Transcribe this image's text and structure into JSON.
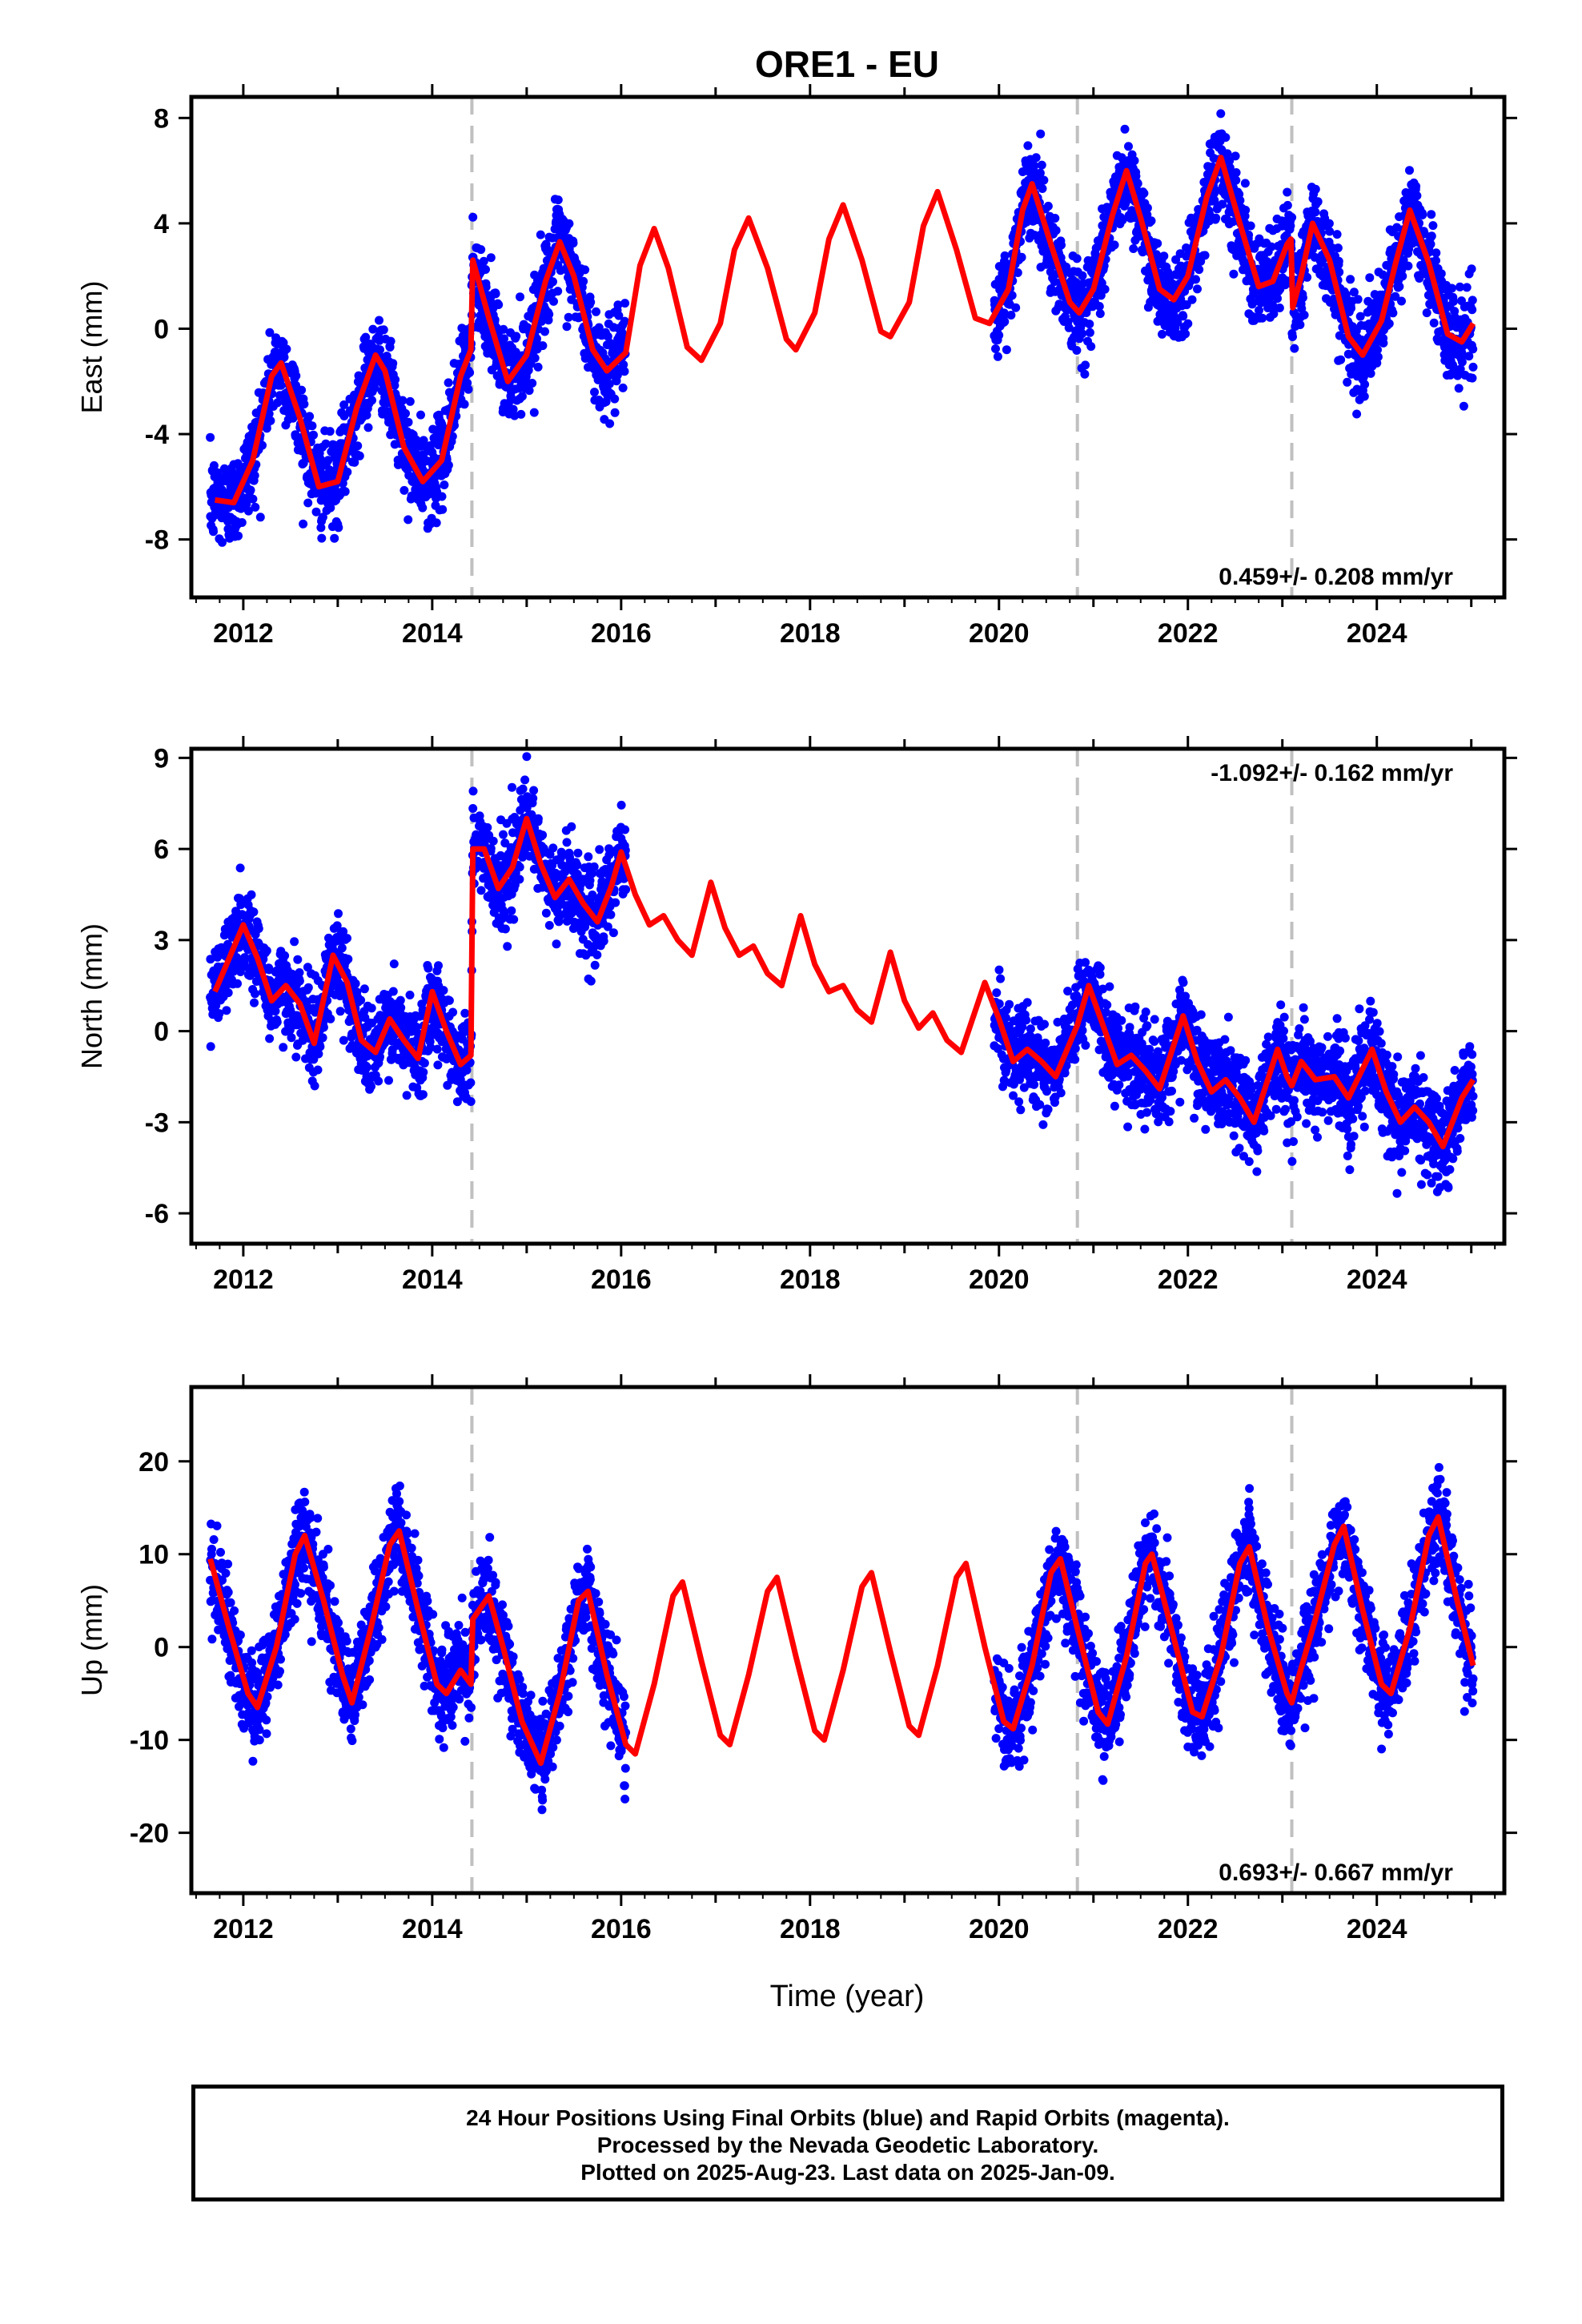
{
  "title": "ORE1 - EU",
  "xlabel": "Time (year)",
  "footer": {
    "line1": "24 Hour Positions Using Final Orbits (blue) and Rapid Orbits (magenta).",
    "line2": "Processed by the Nevada Geodetic Laboratory.",
    "line3": "Plotted on 2025-Aug-23. Last data on 2025-Jan-09."
  },
  "colors": {
    "data": "#0000ff",
    "model": "#ff0000",
    "offset_line": "#c0c0c0",
    "axis": "#000000"
  },
  "chart_data": [
    {
      "type": "scatter",
      "ylabel": "East (mm)",
      "rate_text": "0.459+/- 0.208 mm/yr",
      "xlim": [
        2011.45,
        2025.35
      ],
      "ylim": [
        -10.2,
        8.8
      ],
      "yticks": [
        -8,
        -4,
        0,
        4,
        8
      ],
      "xticks": [
        2012,
        2014,
        2016,
        2018,
        2020,
        2022,
        2024
      ],
      "offset_epochs": [
        2014.42,
        2020.83,
        2023.1
      ],
      "data_spans": [
        [
          2011.65,
          2014.42
        ],
        [
          2014.42,
          2016.05
        ],
        [
          2019.95,
          2022.35
        ],
        [
          2022.35,
          2025.02
        ]
      ],
      "model_points": [
        [
          2011.7,
          -6.5
        ],
        [
          2011.9,
          -6.6
        ],
        [
          2012.1,
          -5.0
        ],
        [
          2012.3,
          -1.8
        ],
        [
          2012.4,
          -1.3
        ],
        [
          2012.6,
          -3.4
        ],
        [
          2012.8,
          -6.0
        ],
        [
          2013.0,
          -5.8
        ],
        [
          2013.2,
          -3.0
        ],
        [
          2013.4,
          -1.0
        ],
        [
          2013.5,
          -1.6
        ],
        [
          2013.7,
          -4.5
        ],
        [
          2013.9,
          -5.8
        ],
        [
          2014.1,
          -5.0
        ],
        [
          2014.3,
          -1.8
        ],
        [
          2014.41,
          -0.8
        ],
        [
          2014.43,
          2.6
        ],
        [
          2014.6,
          0.4
        ],
        [
          2014.8,
          -2.0
        ],
        [
          2015.0,
          -1.0
        ],
        [
          2015.2,
          1.8
        ],
        [
          2015.35,
          3.3
        ],
        [
          2015.5,
          2.0
        ],
        [
          2015.7,
          -0.8
        ],
        [
          2015.85,
          -1.6
        ],
        [
          2016.05,
          -0.9
        ],
        [
          2016.2,
          2.4
        ],
        [
          2016.35,
          3.8
        ],
        [
          2016.5,
          2.3
        ],
        [
          2016.7,
          -0.7
        ],
        [
          2016.85,
          -1.2
        ],
        [
          2017.05,
          0.2
        ],
        [
          2017.2,
          3.0
        ],
        [
          2017.35,
          4.2
        ],
        [
          2017.55,
          2.3
        ],
        [
          2017.75,
          -0.4
        ],
        [
          2017.85,
          -0.8
        ],
        [
          2018.05,
          0.6
        ],
        [
          2018.2,
          3.4
        ],
        [
          2018.35,
          4.7
        ],
        [
          2018.55,
          2.6
        ],
        [
          2018.75,
          -0.1
        ],
        [
          2018.85,
          -0.3
        ],
        [
          2019.05,
          1.0
        ],
        [
          2019.2,
          3.9
        ],
        [
          2019.35,
          5.2
        ],
        [
          2019.55,
          3.0
        ],
        [
          2019.75,
          0.4
        ],
        [
          2019.9,
          0.2
        ],
        [
          2020.1,
          1.5
        ],
        [
          2020.25,
          4.5
        ],
        [
          2020.35,
          5.5
        ],
        [
          2020.55,
          3.2
        ],
        [
          2020.75,
          1.0
        ],
        [
          2020.85,
          0.6
        ],
        [
          2021.0,
          1.5
        ],
        [
          2021.2,
          4.3
        ],
        [
          2021.35,
          6.0
        ],
        [
          2021.5,
          4.2
        ],
        [
          2021.7,
          1.5
        ],
        [
          2021.85,
          1.1
        ],
        [
          2022.0,
          2.0
        ],
        [
          2022.2,
          5.0
        ],
        [
          2022.35,
          6.5
        ],
        [
          2022.55,
          4.0
        ],
        [
          2022.75,
          1.6
        ],
        [
          2022.9,
          1.8
        ],
        [
          2023.05,
          3.2
        ],
        [
          2023.09,
          3.4
        ],
        [
          2023.11,
          0.8
        ],
        [
          2023.2,
          2.0
        ],
        [
          2023.32,
          4.0
        ],
        [
          2023.5,
          2.6
        ],
        [
          2023.7,
          -0.3
        ],
        [
          2023.85,
          -1.0
        ],
        [
          2024.05,
          0.3
        ],
        [
          2024.2,
          2.5
        ],
        [
          2024.35,
          4.5
        ],
        [
          2024.55,
          2.5
        ],
        [
          2024.75,
          -0.2
        ],
        [
          2024.9,
          -0.5
        ],
        [
          2025.02,
          0.2
        ]
      ]
    },
    {
      "type": "scatter",
      "ylabel": "North (mm)",
      "rate_text": "-1.092+/- 0.162 mm/yr",
      "xlim": [
        2011.45,
        2025.35
      ],
      "ylim": [
        -7.0,
        9.3
      ],
      "yticks": [
        -6,
        -3,
        0,
        3,
        6,
        9
      ],
      "xticks": [
        2012,
        2014,
        2016,
        2018,
        2020,
        2022,
        2024
      ],
      "offset_epochs": [
        2014.42,
        2020.83,
        2023.1
      ],
      "data_spans": [
        [
          2011.65,
          2014.42
        ],
        [
          2014.42,
          2016.05
        ],
        [
          2019.95,
          2022.35
        ],
        [
          2022.35,
          2025.02
        ]
      ],
      "model_points": [
        [
          2011.7,
          1.3
        ],
        [
          2011.85,
          2.4
        ],
        [
          2012.0,
          3.5
        ],
        [
          2012.15,
          2.4
        ],
        [
          2012.3,
          1.0
        ],
        [
          2012.45,
          1.5
        ],
        [
          2012.6,
          0.9
        ],
        [
          2012.75,
          -0.4
        ],
        [
          2012.95,
          2.5
        ],
        [
          2013.1,
          1.6
        ],
        [
          2013.25,
          -0.3
        ],
        [
          2013.4,
          -0.7
        ],
        [
          2013.55,
          0.4
        ],
        [
          2013.7,
          -0.3
        ],
        [
          2013.85,
          -0.9
        ],
        [
          2014.0,
          1.3
        ],
        [
          2014.15,
          0.0
        ],
        [
          2014.3,
          -1.1
        ],
        [
          2014.41,
          -0.8
        ],
        [
          2014.43,
          6.0
        ],
        [
          2014.55,
          6.0
        ],
        [
          2014.7,
          4.7
        ],
        [
          2014.85,
          5.4
        ],
        [
          2015.0,
          7.0
        ],
        [
          2015.15,
          5.5
        ],
        [
          2015.3,
          4.4
        ],
        [
          2015.45,
          5.0
        ],
        [
          2015.6,
          4.2
        ],
        [
          2015.75,
          3.6
        ],
        [
          2015.9,
          4.8
        ],
        [
          2016.0,
          5.9
        ],
        [
          2016.15,
          4.5
        ],
        [
          2016.3,
          3.5
        ],
        [
          2016.45,
          3.8
        ],
        [
          2016.6,
          3.0
        ],
        [
          2016.75,
          2.5
        ],
        [
          2016.95,
          4.9
        ],
        [
          2017.1,
          3.4
        ],
        [
          2017.25,
          2.5
        ],
        [
          2017.4,
          2.8
        ],
        [
          2017.55,
          1.9
        ],
        [
          2017.7,
          1.5
        ],
        [
          2017.9,
          3.8
        ],
        [
          2018.05,
          2.2
        ],
        [
          2018.2,
          1.3
        ],
        [
          2018.35,
          1.5
        ],
        [
          2018.5,
          0.7
        ],
        [
          2018.65,
          0.3
        ],
        [
          2018.85,
          2.6
        ],
        [
          2019.0,
          1.0
        ],
        [
          2019.15,
          0.1
        ],
        [
          2019.3,
          0.6
        ],
        [
          2019.45,
          -0.3
        ],
        [
          2019.6,
          -0.7
        ],
        [
          2019.85,
          1.6
        ],
        [
          2020.0,
          0.4
        ],
        [
          2020.15,
          -1.0
        ],
        [
          2020.3,
          -0.6
        ],
        [
          2020.45,
          -1.0
        ],
        [
          2020.6,
          -1.5
        ],
        [
          2020.83,
          0.2
        ],
        [
          2020.95,
          1.5
        ],
        [
          2021.1,
          0.2
        ],
        [
          2021.25,
          -1.1
        ],
        [
          2021.4,
          -0.8
        ],
        [
          2021.55,
          -1.3
        ],
        [
          2021.7,
          -1.9
        ],
        [
          2021.95,
          0.5
        ],
        [
          2022.1,
          -1.0
        ],
        [
          2022.25,
          -2.0
        ],
        [
          2022.4,
          -1.6
        ],
        [
          2022.55,
          -2.2
        ],
        [
          2022.7,
          -3.0
        ],
        [
          2022.95,
          -0.6
        ],
        [
          2023.05,
          -1.5
        ],
        [
          2023.1,
          -1.8
        ],
        [
          2023.2,
          -1.0
        ],
        [
          2023.35,
          -1.6
        ],
        [
          2023.55,
          -1.5
        ],
        [
          2023.7,
          -2.2
        ],
        [
          2023.95,
          -0.6
        ],
        [
          2024.1,
          -2.0
        ],
        [
          2024.25,
          -3.0
        ],
        [
          2024.4,
          -2.5
        ],
        [
          2024.55,
          -3.0
        ],
        [
          2024.7,
          -3.8
        ],
        [
          2024.9,
          -2.2
        ],
        [
          2025.02,
          -1.6
        ]
      ]
    },
    {
      "type": "scatter",
      "ylabel": "Up (mm)",
      "rate_text": "0.693+/- 0.667 mm/yr",
      "xlim": [
        2011.45,
        2025.35
      ],
      "ylim": [
        -26.5,
        28.0
      ],
      "yticks": [
        -20,
        -10,
        0,
        10,
        20
      ],
      "xticks": [
        2012,
        2014,
        2016,
        2018,
        2020,
        2022,
        2024
      ],
      "offset_epochs": [
        2014.42,
        2020.83,
        2023.1
      ],
      "data_spans": [
        [
          2011.65,
          2014.42
        ],
        [
          2014.42,
          2016.05
        ],
        [
          2019.95,
          2022.35
        ],
        [
          2022.35,
          2025.02
        ]
      ],
      "model_points": [
        [
          2011.65,
          9.5
        ],
        [
          2011.85,
          2.0
        ],
        [
          2012.05,
          -5.0
        ],
        [
          2012.15,
          -6.5
        ],
        [
          2012.35,
          0.0
        ],
        [
          2012.55,
          10.0
        ],
        [
          2012.65,
          12.0
        ],
        [
          2012.85,
          5.0
        ],
        [
          2013.05,
          -3.0
        ],
        [
          2013.15,
          -6.0
        ],
        [
          2013.35,
          2.0
        ],
        [
          2013.55,
          11.0
        ],
        [
          2013.65,
          12.5
        ],
        [
          2013.85,
          4.0
        ],
        [
          2014.05,
          -4.0
        ],
        [
          2014.15,
          -5.0
        ],
        [
          2014.3,
          -2.5
        ],
        [
          2014.41,
          -4.0
        ],
        [
          2014.43,
          3.0
        ],
        [
          2014.6,
          5.5
        ],
        [
          2014.75,
          0.0
        ],
        [
          2014.95,
          -8.0
        ],
        [
          2015.15,
          -12.5
        ],
        [
          2015.35,
          -5.0
        ],
        [
          2015.55,
          5.0
        ],
        [
          2015.65,
          6.0
        ],
        [
          2015.85,
          -3.0
        ],
        [
          2016.05,
          -10.5
        ],
        [
          2016.15,
          -11.5
        ],
        [
          2016.35,
          -4.0
        ],
        [
          2016.55,
          5.5
        ],
        [
          2016.65,
          7.0
        ],
        [
          2016.85,
          -1.5
        ],
        [
          2017.05,
          -9.5
        ],
        [
          2017.15,
          -10.5
        ],
        [
          2017.35,
          -3.0
        ],
        [
          2017.55,
          6.0
        ],
        [
          2017.65,
          7.5
        ],
        [
          2017.85,
          -1.0
        ],
        [
          2018.05,
          -9.0
        ],
        [
          2018.15,
          -10.0
        ],
        [
          2018.35,
          -2.5
        ],
        [
          2018.55,
          6.5
        ],
        [
          2018.65,
          8.0
        ],
        [
          2018.85,
          -0.5
        ],
        [
          2019.05,
          -8.5
        ],
        [
          2019.15,
          -9.5
        ],
        [
          2019.35,
          -2.0
        ],
        [
          2019.55,
          7.5
        ],
        [
          2019.65,
          9.0
        ],
        [
          2019.85,
          0.0
        ],
        [
          2020.05,
          -8.0
        ],
        [
          2020.15,
          -8.8
        ],
        [
          2020.35,
          -2.0
        ],
        [
          2020.55,
          8.0
        ],
        [
          2020.65,
          9.5
        ],
        [
          2020.83,
          2.0
        ],
        [
          2021.05,
          -7.0
        ],
        [
          2021.15,
          -8.3
        ],
        [
          2021.35,
          -1.0
        ],
        [
          2021.55,
          9.0
        ],
        [
          2021.62,
          10.0
        ],
        [
          2021.85,
          1.0
        ],
        [
          2022.05,
          -7.0
        ],
        [
          2022.15,
          -7.5
        ],
        [
          2022.35,
          -1.0
        ],
        [
          2022.55,
          9.0
        ],
        [
          2022.65,
          10.8
        ],
        [
          2022.85,
          2.0
        ],
        [
          2023.05,
          -5.0
        ],
        [
          2023.1,
          -6.0
        ],
        [
          2023.15,
          -4.0
        ],
        [
          2023.35,
          3.0
        ],
        [
          2023.55,
          11.0
        ],
        [
          2023.65,
          13.0
        ],
        [
          2023.85,
          4.0
        ],
        [
          2024.05,
          -4.0
        ],
        [
          2024.15,
          -5.0
        ],
        [
          2024.35,
          2.0
        ],
        [
          2024.55,
          12.0
        ],
        [
          2024.65,
          14.0
        ],
        [
          2024.85,
          5.0
        ],
        [
          2025.02,
          -2.0
        ]
      ]
    }
  ]
}
